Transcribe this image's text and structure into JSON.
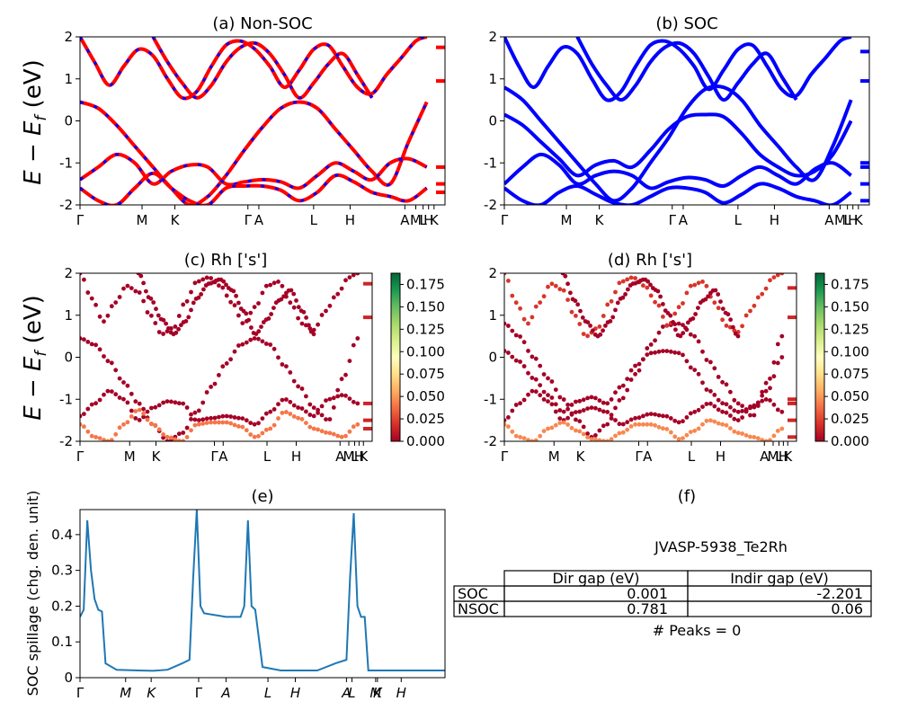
{
  "colors": {
    "nonsoc_line": "#ff0000",
    "nonsoc_dash": "#0000ff",
    "soc_line": "#0000ff",
    "spillage_line": "#1f77b4",
    "colormap": [
      "#a50026",
      "#d73027",
      "#f46d43",
      "#fdae61",
      "#fee08b",
      "#ffffbf",
      "#d9ef8b",
      "#a6d96a",
      "#66bd63",
      "#1a9850",
      "#006837"
    ]
  },
  "kpath_labels": [
    "Γ",
    "M",
    "K",
    "Γ",
    "A",
    "L",
    "H",
    "A",
    "M",
    "L",
    "H",
    "K"
  ],
  "spillage_labels": [
    "Γ",
    "M",
    "K",
    "Γ",
    "A",
    "L",
    "H",
    "A",
    "L",
    "M",
    "K",
    "H"
  ],
  "band_ylabel": "E − E",
  "band_ylabel_sub": "f",
  "band_ylabel_unit": " (eV)",
  "colorbar_ticks": [
    "0.000",
    "0.025",
    "0.050",
    "0.075",
    "0.100",
    "0.125",
    "0.150",
    "0.175"
  ],
  "table": {
    "heading": "JVASP-5938_Te2Rh",
    "col_headers": [
      "Dir gap (eV)",
      "Indir gap (eV)"
    ],
    "rows": [
      {
        "label": "SOC",
        "dir": "0.001",
        "indir": "-2.201"
      },
      {
        "label": "NSOC",
        "dir": "0.781",
        "indir": "0.06"
      }
    ],
    "peaks": "# Peaks = 0"
  },
  "chart_data": [
    {
      "id": "a",
      "type": "line",
      "title": "(a) Non-SOC",
      "ylim": [
        -2,
        2
      ],
      "yticks": [
        -2,
        -1,
        0,
        1,
        2
      ],
      "series_note": "red solid with blue dashed overlay",
      "bands": [
        {
          "x": [
            0,
            0.05,
            0.1,
            0.15,
            0.2,
            0.25,
            0.3,
            0.35,
            0.4,
            0.45,
            0.5,
            0.55,
            0.6,
            0.65,
            0.7,
            0.75,
            0.8,
            0.85,
            0.9,
            0.95
          ],
          "y": [
            0.45,
            0.3,
            -0.1,
            -0.6,
            -1.1,
            -1.6,
            -2.0,
            -1.8,
            -1.3,
            -0.7,
            -0.15,
            0.3,
            0.45,
            0.3,
            -0.2,
            -0.7,
            -1.2,
            -1.5,
            -0.5,
            0.45
          ]
        },
        {
          "x": [
            0,
            0.05,
            0.1,
            0.15,
            0.2,
            0.25,
            0.3,
            0.35,
            0.4,
            0.45,
            0.5,
            0.55,
            0.6,
            0.65,
            0.7,
            0.75,
            0.8,
            0.85,
            0.9,
            0.95
          ],
          "y": [
            -1.4,
            -1.1,
            -0.8,
            -1.0,
            -1.5,
            -1.2,
            -1.05,
            -1.1,
            -1.5,
            -1.45,
            -1.4,
            -1.45,
            -1.6,
            -1.3,
            -1.0,
            -1.2,
            -1.4,
            -1.0,
            -0.9,
            -1.1
          ]
        },
        {
          "x": [
            0,
            0.05,
            0.1,
            0.15,
            0.2,
            0.25,
            0.3,
            0.35,
            0.4,
            0.45,
            0.5,
            0.55,
            0.6,
            0.65,
            0.7,
            0.75,
            0.8,
            0.85,
            0.9,
            0.95
          ],
          "y": [
            -1.6,
            -1.9,
            -2.0,
            -1.6,
            -1.25,
            -1.6,
            -1.9,
            -2.0,
            -1.6,
            -1.55,
            -1.55,
            -1.65,
            -1.9,
            -1.7,
            -1.3,
            -1.45,
            -1.7,
            -1.8,
            -1.9,
            -1.6
          ]
        },
        {
          "x": [
            0,
            0.04,
            0.08,
            0.12,
            0.16,
            0.2,
            0.24,
            0.28,
            0.32,
            0.36,
            0.4,
            0.44,
            0.48,
            0.52,
            0.56,
            0.6,
            0.64,
            0.68,
            0.72,
            0.76,
            0.8,
            0.84,
            0.88,
            0.92,
            0.95
          ],
          "y": [
            2.0,
            1.4,
            0.85,
            1.3,
            1.7,
            1.55,
            1.0,
            0.55,
            0.7,
            1.3,
            1.8,
            1.9,
            1.7,
            1.3,
            0.8,
            1.2,
            1.7,
            1.8,
            1.3,
            0.8,
            0.65,
            1.1,
            1.5,
            1.9,
            2.0
          ]
        },
        {
          "x": [
            0.2,
            0.24,
            0.28,
            0.32,
            0.36,
            0.4,
            0.44,
            0.48,
            0.52,
            0.56,
            0.6,
            0.64,
            0.68,
            0.72,
            0.76,
            0.8
          ],
          "y": [
            2.0,
            1.4,
            0.9,
            0.55,
            0.85,
            1.4,
            1.75,
            1.85,
            1.6,
            1.1,
            0.55,
            0.9,
            1.35,
            1.6,
            1.1,
            0.55
          ]
        }
      ],
      "side_markers": [
        1.75,
        0.95,
        -1.1,
        -1.5,
        -1.7
      ]
    },
    {
      "id": "b",
      "type": "line",
      "title": "(b) SOC",
      "ylim": [
        -2,
        2
      ],
      "yticks": [
        -2,
        -1,
        0,
        1,
        2
      ],
      "bands": [
        {
          "x": [
            0,
            0.05,
            0.1,
            0.15,
            0.2,
            0.25,
            0.3,
            0.35,
            0.4,
            0.45,
            0.5,
            0.55,
            0.6,
            0.65,
            0.7,
            0.75,
            0.8,
            0.85,
            0.9,
            0.95
          ],
          "y": [
            0.8,
            0.5,
            0.0,
            -0.5,
            -1.0,
            -1.5,
            -1.9,
            -1.6,
            -1.0,
            -0.4,
            0.3,
            0.75,
            0.8,
            0.5,
            -0.1,
            -0.6,
            -1.1,
            -1.4,
            -0.6,
            0.5
          ]
        },
        {
          "x": [
            0,
            0.05,
            0.1,
            0.15,
            0.2,
            0.25,
            0.3,
            0.35,
            0.4,
            0.45,
            0.5,
            0.55,
            0.6,
            0.65,
            0.7,
            0.75,
            0.8,
            0.85,
            0.9,
            0.95
          ],
          "y": [
            0.15,
            -0.1,
            -0.5,
            -0.9,
            -1.3,
            -1.05,
            -0.95,
            -1.1,
            -0.7,
            -0.2,
            0.1,
            0.15,
            0.1,
            -0.3,
            -0.8,
            -1.1,
            -1.3,
            -1.2,
            -0.8,
            0.0
          ]
        },
        {
          "x": [
            0,
            0.05,
            0.1,
            0.15,
            0.2,
            0.25,
            0.3,
            0.35,
            0.4,
            0.45,
            0.5,
            0.55,
            0.6,
            0.65,
            0.7,
            0.75,
            0.8,
            0.85,
            0.9,
            0.95
          ],
          "y": [
            -1.5,
            -1.1,
            -0.8,
            -1.05,
            -1.5,
            -1.3,
            -1.2,
            -1.3,
            -1.6,
            -1.45,
            -1.35,
            -1.4,
            -1.55,
            -1.3,
            -1.1,
            -1.3,
            -1.5,
            -1.15,
            -1.0,
            -1.3
          ]
        },
        {
          "x": [
            0,
            0.05,
            0.1,
            0.15,
            0.2,
            0.25,
            0.3,
            0.35,
            0.4,
            0.45,
            0.5,
            0.55,
            0.6,
            0.65,
            0.7,
            0.75,
            0.8,
            0.85,
            0.9,
            0.95
          ],
          "y": [
            -1.6,
            -1.9,
            -2.0,
            -1.7,
            -1.55,
            -1.75,
            -1.95,
            -2.0,
            -1.8,
            -1.6,
            -1.6,
            -1.7,
            -1.95,
            -1.75,
            -1.5,
            -1.6,
            -1.8,
            -1.9,
            -2.0,
            -1.7
          ]
        },
        {
          "x": [
            0,
            0.04,
            0.08,
            0.12,
            0.16,
            0.2,
            0.24,
            0.28,
            0.32,
            0.36,
            0.4,
            0.44,
            0.48,
            0.52,
            0.56,
            0.6,
            0.64,
            0.68,
            0.72,
            0.76,
            0.8,
            0.84,
            0.88,
            0.92,
            0.95
          ],
          "y": [
            2.0,
            1.3,
            0.8,
            1.3,
            1.75,
            1.6,
            1.0,
            0.5,
            0.7,
            1.3,
            1.8,
            1.9,
            1.7,
            1.3,
            0.75,
            1.2,
            1.7,
            1.8,
            1.3,
            0.75,
            0.6,
            1.1,
            1.5,
            1.9,
            2.0
          ]
        },
        {
          "x": [
            0.2,
            0.24,
            0.28,
            0.32,
            0.36,
            0.4,
            0.44,
            0.48,
            0.52,
            0.56,
            0.6,
            0.64,
            0.68,
            0.72,
            0.76,
            0.8
          ],
          "y": [
            2.0,
            1.35,
            0.85,
            0.5,
            0.85,
            1.4,
            1.75,
            1.85,
            1.6,
            1.05,
            0.5,
            0.9,
            1.35,
            1.6,
            1.05,
            0.5
          ]
        }
      ],
      "side_markers": [
        1.65,
        0.95,
        -1.0,
        -1.1,
        -1.5,
        -1.9
      ]
    },
    {
      "id": "c",
      "type": "scatter",
      "title": "(c)  Rh ['s']",
      "ylim": [
        -2,
        2
      ],
      "yticks": [
        -2,
        -1,
        0,
        1,
        2
      ],
      "colorbar_range": [
        0,
        0.1875
      ],
      "bands_source": "a",
      "weights": [
        0.0,
        0.0,
        0.04,
        0.0,
        0.0
      ],
      "side_markers": [
        1.75,
        0.95,
        -1.1,
        -1.5,
        -1.7
      ]
    },
    {
      "id": "d",
      "type": "scatter",
      "title": "(d) Rh ['s']",
      "ylim": [
        -2,
        2
      ],
      "yticks": [
        -2,
        -1,
        0,
        1,
        2
      ],
      "colorbar_range": [
        0,
        0.1875
      ],
      "bands_source": "b",
      "weights": [
        0.0,
        0.0,
        0.0,
        0.045,
        0.02,
        0.0
      ],
      "side_markers": [
        1.65,
        0.95,
        -1.0,
        -1.1,
        -1.5,
        -1.9
      ]
    },
    {
      "id": "e",
      "type": "line",
      "title": "(e)",
      "ylabel": "SOC spillage (chg. den. unit)",
      "ylim": [
        0,
        0.47
      ],
      "yticks": [
        0.0,
        0.1,
        0.2,
        0.3,
        0.4
      ],
      "x": [
        0,
        0.01,
        0.02,
        0.03,
        0.04,
        0.05,
        0.06,
        0.07,
        0.1,
        0.13,
        0.16,
        0.2,
        0.24,
        0.28,
        0.3,
        0.31,
        0.32,
        0.33,
        0.34,
        0.4,
        0.44,
        0.45,
        0.46,
        0.47,
        0.48,
        0.5,
        0.55,
        0.6,
        0.65,
        0.7,
        0.73,
        0.74,
        0.75,
        0.76,
        0.77,
        0.78,
        0.79,
        0.85,
        0.95,
        1.0
      ],
      "y": [
        0.17,
        0.19,
        0.44,
        0.3,
        0.22,
        0.19,
        0.185,
        0.04,
        0.022,
        0.021,
        0.02,
        0.019,
        0.022,
        0.04,
        0.05,
        0.28,
        0.47,
        0.2,
        0.18,
        0.17,
        0.17,
        0.2,
        0.44,
        0.2,
        0.19,
        0.03,
        0.02,
        0.02,
        0.02,
        0.04,
        0.05,
        0.28,
        0.46,
        0.2,
        0.17,
        0.17,
        0.02,
        0.02,
        0.02,
        0.02
      ]
    }
  ]
}
